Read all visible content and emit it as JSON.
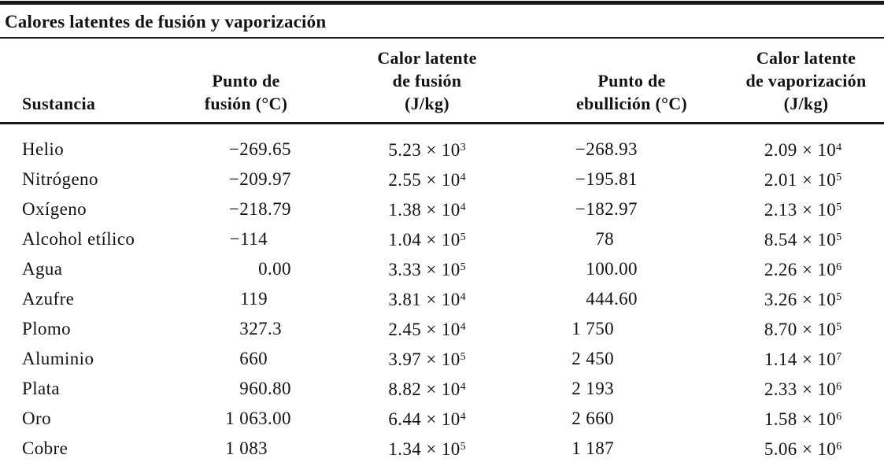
{
  "table": {
    "title": "Calores latentes de fusión y vaporización",
    "columns": [
      {
        "id": "sustancia",
        "lines": [
          "Sustancia"
        ]
      },
      {
        "id": "punto-fusion",
        "lines": [
          "Punto de",
          "fusión (°C)"
        ]
      },
      {
        "id": "calor-fusion",
        "lines": [
          "Calor latente",
          "de fusión",
          "(J/kg)"
        ]
      },
      {
        "id": "punto-ebullicion",
        "lines": [
          "Punto de",
          "ebullición (°C)"
        ]
      },
      {
        "id": "calor-vaporizacion",
        "lines": [
          "Calor latente",
          "de vaporización",
          "(J/kg)"
        ]
      }
    ],
    "multiply_sign": "×",
    "rows": [
      {
        "sustancia": "Helio",
        "punto_fusion": "−269.65",
        "calor_fusion": {
          "coef": "5.23",
          "exp": "3"
        },
        "punto_ebullicion": "−268.93",
        "calor_vaporizacion": {
          "coef": "2.09",
          "exp": "4"
        }
      },
      {
        "sustancia": "Nitrógeno",
        "punto_fusion": "−209.97",
        "calor_fusion": {
          "coef": "2.55",
          "exp": "4"
        },
        "punto_ebullicion": "−195.81",
        "calor_vaporizacion": {
          "coef": "2.01",
          "exp": "5"
        }
      },
      {
        "sustancia": "Oxígeno",
        "punto_fusion": "−218.79",
        "calor_fusion": {
          "coef": "1.38",
          "exp": "4"
        },
        "punto_ebullicion": "−182.97",
        "calor_vaporizacion": {
          "coef": "2.13",
          "exp": "5"
        }
      },
      {
        "sustancia": "Alcohol etílico",
        "punto_fusion": "−114",
        "calor_fusion": {
          "coef": "1.04",
          "exp": "5"
        },
        "punto_ebullicion": "78",
        "calor_vaporizacion": {
          "coef": "8.54",
          "exp": "5"
        }
      },
      {
        "sustancia": "Agua",
        "punto_fusion": "0.00",
        "calor_fusion": {
          "coef": "3.33",
          "exp": "5"
        },
        "punto_ebullicion": "100.00",
        "calor_vaporizacion": {
          "coef": "2.26",
          "exp": "6"
        }
      },
      {
        "sustancia": "Azufre",
        "punto_fusion": "119",
        "calor_fusion": {
          "coef": "3.81",
          "exp": "4"
        },
        "punto_ebullicion": "444.60",
        "calor_vaporizacion": {
          "coef": "3.26",
          "exp": "5"
        }
      },
      {
        "sustancia": "Plomo",
        "punto_fusion": "327.3",
        "calor_fusion": {
          "coef": "2.45",
          "exp": "4"
        },
        "punto_ebullicion": "1 750",
        "calor_vaporizacion": {
          "coef": "8.70",
          "exp": "5"
        }
      },
      {
        "sustancia": "Aluminio",
        "punto_fusion": "660",
        "calor_fusion": {
          "coef": "3.97",
          "exp": "5"
        },
        "punto_ebullicion": "2 450",
        "calor_vaporizacion": {
          "coef": "1.14",
          "exp": "7"
        }
      },
      {
        "sustancia": "Plata",
        "punto_fusion": "960.80",
        "calor_fusion": {
          "coef": "8.82",
          "exp": "4"
        },
        "punto_ebullicion": "2 193",
        "calor_vaporizacion": {
          "coef": "2.33",
          "exp": "6"
        }
      },
      {
        "sustancia": "Oro",
        "punto_fusion": "1 063.00",
        "calor_fusion": {
          "coef": "6.44",
          "exp": "4"
        },
        "punto_ebullicion": "2 660",
        "calor_vaporizacion": {
          "coef": "1.58",
          "exp": "6"
        }
      },
      {
        "sustancia": "Cobre",
        "punto_fusion": "1 083",
        "calor_fusion": {
          "coef": "1.34",
          "exp": "5"
        },
        "punto_ebullicion": "1 187",
        "calor_vaporizacion": {
          "coef": "5.06",
          "exp": "6"
        }
      }
    ]
  },
  "colors": {
    "text": "#131313",
    "rule": "#1a1a1a",
    "background": "#ffffff"
  }
}
